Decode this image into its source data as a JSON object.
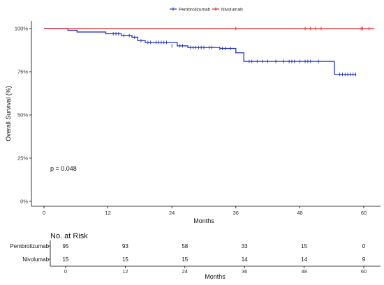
{
  "chart_data": {
    "type": "line",
    "subtype": "kaplan-meier",
    "ylabel": "Overall Survival (%)",
    "xlabel": "Months",
    "x_ticks": [
      0,
      12,
      24,
      36,
      48,
      60
    ],
    "y_ticks": [
      0,
      25,
      50,
      75,
      100
    ],
    "y_tick_labels": [
      "0%",
      "25%",
      "50%",
      "75%",
      "100%"
    ],
    "xlim": [
      -2,
      62
    ],
    "ylim": [
      -4,
      103
    ],
    "grid": false,
    "legend": {
      "placement": "top-center"
    },
    "p_value": "p = 0.048",
    "series": [
      {
        "name": "Pembrolizumab",
        "color": "#2233cc",
        "steps": [
          [
            0,
            100
          ],
          [
            4.5,
            100
          ],
          [
            4.5,
            99
          ],
          [
            6.2,
            99
          ],
          [
            6.2,
            98
          ],
          [
            11.6,
            98
          ],
          [
            11.6,
            97
          ],
          [
            14.5,
            97
          ],
          [
            14.5,
            96
          ],
          [
            16.5,
            96
          ],
          [
            16.5,
            95
          ],
          [
            17.6,
            95
          ],
          [
            17.6,
            93
          ],
          [
            19,
            93
          ],
          [
            19,
            92
          ],
          [
            25,
            92
          ],
          [
            25,
            90
          ],
          [
            27,
            90
          ],
          [
            27,
            89
          ],
          [
            33,
            89
          ],
          [
            33,
            88.5
          ],
          [
            36,
            88.5
          ],
          [
            36,
            86
          ],
          [
            37.5,
            86
          ],
          [
            37.5,
            81
          ],
          [
            54.5,
            81
          ],
          [
            54.5,
            73.5
          ],
          [
            58.5,
            73.5
          ]
        ],
        "censor_times": [
          13,
          13.5,
          14,
          15,
          16,
          17,
          18.2,
          19.5,
          20,
          21,
          21.5,
          22,
          22.5,
          23,
          24,
          25.5,
          26,
          27.5,
          28,
          28.5,
          29,
          29.5,
          30,
          31,
          31.5,
          33,
          33.5,
          34,
          35,
          38.5,
          39,
          40,
          41,
          42,
          43.5,
          45,
          46,
          46.5,
          47,
          48,
          49,
          49.5,
          50,
          51.5,
          55.5,
          56,
          56.5,
          57,
          57.5,
          58,
          58.5
        ],
        "censor_y": [
          97,
          97,
          97,
          96,
          96,
          95,
          93,
          92,
          92,
          92,
          92,
          92,
          92,
          92,
          90,
          90,
          90,
          89,
          89,
          89,
          89,
          89,
          89,
          89,
          89,
          88.5,
          88.5,
          88.5,
          88.5,
          81,
          81,
          81,
          81,
          81,
          81,
          81,
          81,
          81,
          81,
          81,
          81,
          81,
          81,
          81,
          73.5,
          73.5,
          73.5,
          73.5,
          73.5,
          73.5,
          73.5
        ]
      },
      {
        "name": "Nivolumab",
        "color": "#dd2222",
        "steps": [
          [
            0,
            100
          ],
          [
            62,
            100
          ]
        ],
        "censor_times": [
          36,
          49,
          50,
          51,
          52,
          59.5,
          59.8,
          61
        ],
        "censor_y": [
          100,
          100,
          100,
          100,
          100,
          100,
          100,
          100
        ]
      }
    ]
  },
  "risk_table": {
    "title": "No. at Risk",
    "xlabel": "Months",
    "x_ticks": [
      0,
      12,
      24,
      36,
      48,
      60
    ],
    "rows": [
      {
        "label": "Pembrolizumab",
        "color": "#2233cc",
        "values": [
          "95",
          "93",
          "58",
          "33",
          "15",
          "0"
        ]
      },
      {
        "label": "Nivolumab",
        "color": "#dd2222",
        "values": [
          "15",
          "15",
          "15",
          "14",
          "14",
          "9"
        ]
      }
    ]
  }
}
